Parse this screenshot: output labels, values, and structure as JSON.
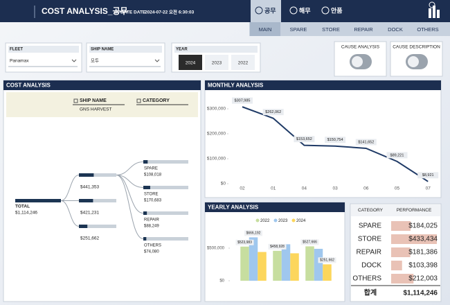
{
  "header": {
    "title": "COST ANALYSIS_공무",
    "update_label": "UPDATE DATE",
    "update_value": "2024-07-22 오전 6:30:03",
    "tabs": [
      "공무",
      "해무",
      "안품"
    ],
    "active_tab": 0
  },
  "nav": {
    "items": [
      "MAIN",
      "SPARE",
      "STORE",
      "REPAIR",
      "DOCK",
      "OTHERS"
    ],
    "active": 0
  },
  "filters": {
    "fleet": {
      "label": "FLEET",
      "value": "Panamax"
    },
    "ship_name": {
      "label": "SHIP NAME",
      "value": "모두"
    },
    "year": {
      "label": "YEAR",
      "options": [
        "2024",
        "2023",
        "2022"
      ],
      "selected": 0
    }
  },
  "toggles": [
    {
      "label": "CAUSE ANALYSIS",
      "on": false
    },
    {
      "label": "CAUSE DESCRIPTION",
      "on": false
    }
  ],
  "cost_analysis": {
    "title": "COST ANALYSIS",
    "levels": [
      "SHIP NAME",
      "CATEGORY"
    ],
    "ship": "GNS HARVEST",
    "total": {
      "name": "TOTAL",
      "value": 1114246,
      "value_label": "$1,114,246"
    },
    "nodes": [
      {
        "value": 441353,
        "value_label": "$441,353"
      },
      {
        "value": 421231,
        "value_label": "$421,231"
      },
      {
        "value": 251662,
        "value_label": "$251,662"
      }
    ],
    "children": [
      {
        "name": "SPARE",
        "value": 108018,
        "value_label": "$108,018"
      },
      {
        "name": "STORE",
        "value": 170683,
        "value_label": "$170,683"
      },
      {
        "name": "REPAIR",
        "value": 88249,
        "value_label": "$88,249"
      },
      {
        "name": "OTHERS",
        "value": 74080,
        "value_label": "$74,080"
      }
    ]
  },
  "monthly_chart": {
    "type": "line",
    "title": "MONTHLY ANALYSIS",
    "categories": [
      "02",
      "01",
      "04",
      "03",
      "06",
      "05",
      "07"
    ],
    "values": [
      307985,
      262062,
      153652,
      150754,
      141652,
      89221,
      8921
    ],
    "value_labels": [
      "$307,985",
      "$262,062",
      "$153,652",
      "$150,754",
      "$141,652",
      "$89,221",
      "$8,921"
    ],
    "color": "#1f3a66",
    "ylim": [
      0,
      330000
    ],
    "yticks": [
      {
        "value": 0,
        "label": "$0"
      },
      {
        "value": 100000,
        "label": "$100,000"
      },
      {
        "value": 200000,
        "label": "$200,000"
      },
      {
        "value": 300000,
        "label": "$300,000"
      }
    ]
  },
  "yearly_chart": {
    "type": "bar",
    "title": "YEARLY ANALYSIS",
    "categories": [
      null,
      null,
      null
    ],
    "series": [
      {
        "name": "2022",
        "color": "#c7de9f",
        "values": [
          523983,
          458928,
          527666
        ],
        "value_labels": [
          "$523,983",
          "$458,928",
          "$527,666"
        ]
      },
      {
        "name": "2023",
        "color": "#9fc7ee",
        "values": [
          666192,
          560000,
          490000
        ],
        "value_labels": [
          "$666,192",
          null,
          null
        ]
      },
      {
        "name": "2024",
        "color": "#fcd65c",
        "values": [
          441353,
          421231,
          251662
        ],
        "value_labels": [
          null,
          null,
          "$251,662"
        ]
      }
    ],
    "ylim": [
      0,
      800000
    ],
    "yticks": [
      {
        "value": 0,
        "label": "$0"
      },
      {
        "value": 500000,
        "label": "$500,000"
      }
    ]
  },
  "performance": {
    "columns": [
      "CATEGORY",
      "PERFORMANCE"
    ],
    "rows": [
      {
        "category": "SPARE",
        "value": 184025,
        "value_label": "$184,025"
      },
      {
        "category": "STORE",
        "value": 433434,
        "value_label": "$433,434"
      },
      {
        "category": "REPAIR",
        "value": 181386,
        "value_label": "$181,386"
      },
      {
        "category": "DOCK",
        "value": 103398,
        "value_label": "$103,398"
      },
      {
        "category": "OTHERS",
        "value": 212003,
        "value_label": "$212,003"
      }
    ],
    "total": {
      "label": "합계",
      "value": 1114246,
      "value_label": "$1,114,246"
    }
  }
}
